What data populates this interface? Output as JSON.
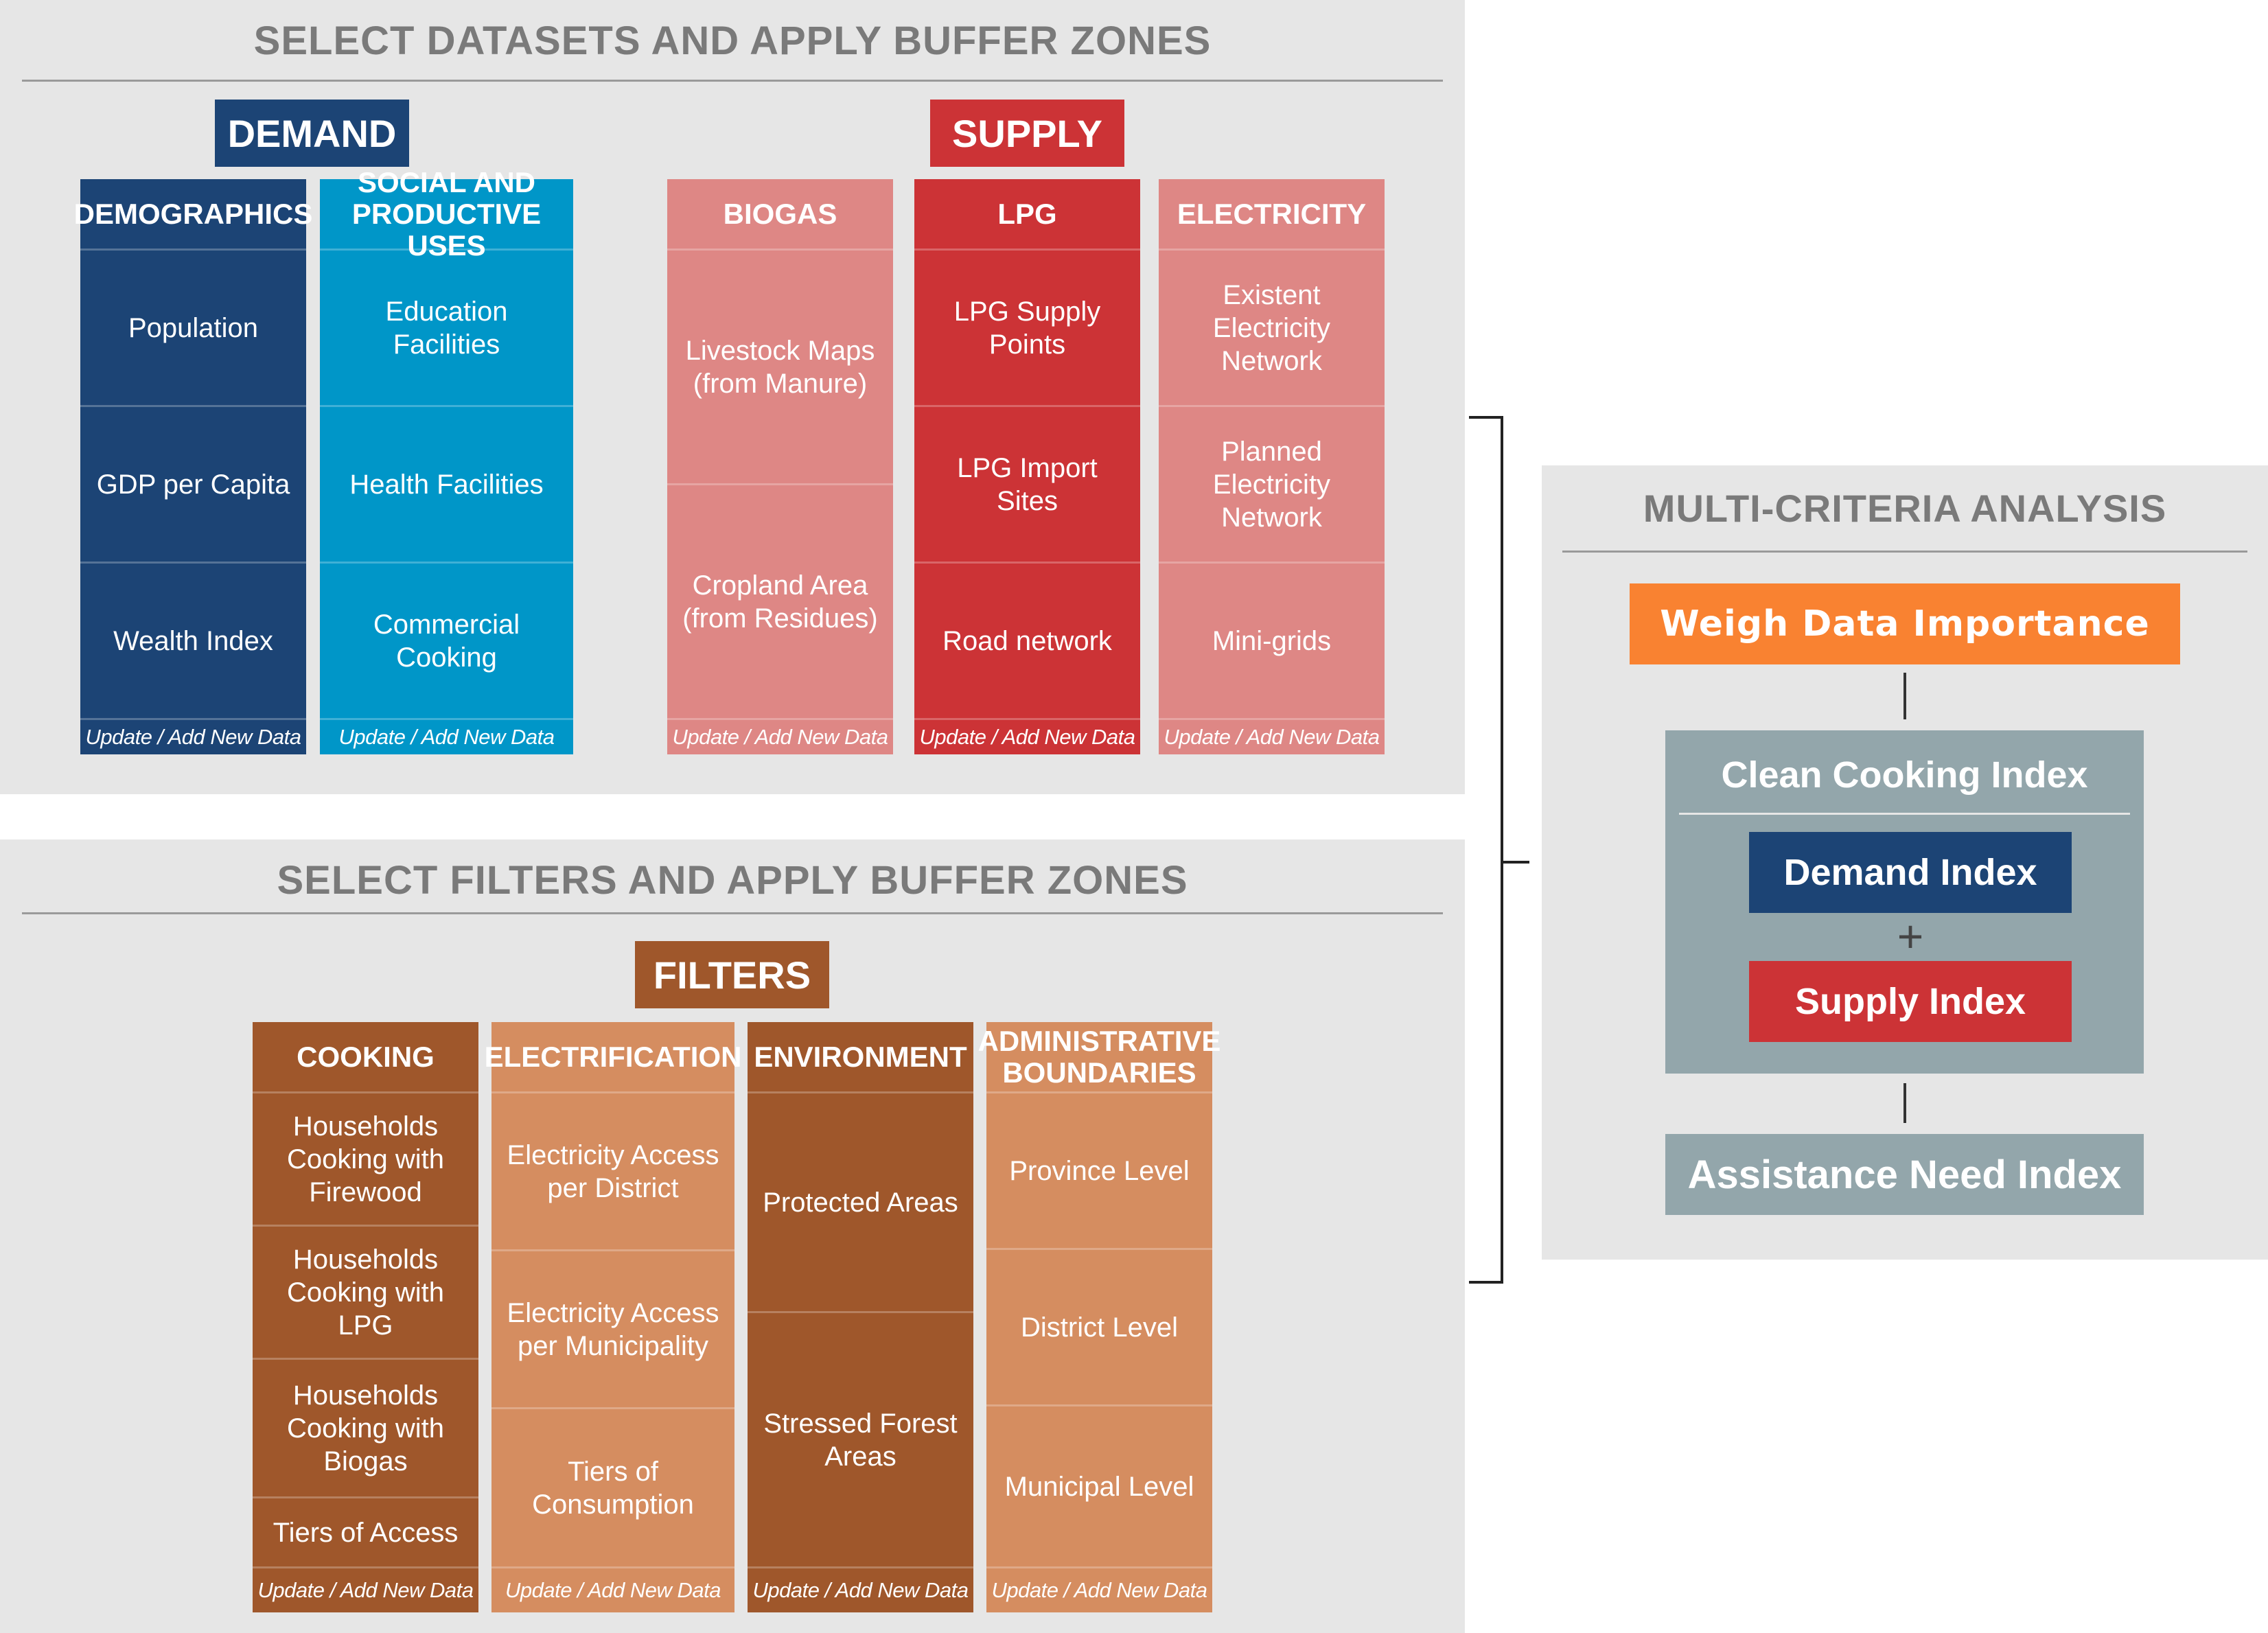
{
  "datasets": {
    "title": "SELECT DATASETS AND APPLY BUFFER ZONES",
    "demand_label": "DEMAND",
    "supply_label": "SUPPLY",
    "columns": [
      {
        "header": "DEMOGRAPHICS",
        "items": [
          "Population",
          "GDP per Capita",
          "Wealth Index"
        ],
        "footer": "Update / Add New Data"
      },
      {
        "header": "SOCIAL AND\nPRODUCTIVE USES",
        "items": [
          "Education\nFacilities",
          "Health Facilities",
          "Commercial\nCooking"
        ],
        "footer": "Update / Add New Data"
      },
      {
        "header": "BIOGAS",
        "items": [
          "Livestock Maps\n(from Manure)",
          "Cropland Area\n(from Residues)"
        ],
        "footer": "Update / Add New Data"
      },
      {
        "header": "LPG",
        "items": [
          "LPG Supply\nPoints",
          "LPG Import\nSites",
          "Road network"
        ],
        "footer": "Update / Add New Data"
      },
      {
        "header": "ELECTRICITY",
        "items": [
          "Existent\nElectricity\nNetwork",
          "Planned\nElectricity\nNetwork",
          "Mini-grids"
        ],
        "footer": "Update / Add New Data"
      }
    ]
  },
  "filters": {
    "title": "SELECT FILTERS AND APPLY BUFFER ZONES",
    "filters_label": "FILTERS",
    "columns": [
      {
        "header": "COOKING",
        "items": [
          "Households\nCooking with\nFirewood",
          "Households\nCooking with\nLPG",
          "Households\nCooking with\nBiogas",
          "Tiers of Access"
        ],
        "footer": "Update / Add New Data"
      },
      {
        "header": "ELECTRIFICATION",
        "items": [
          "Electricity Access\nper District",
          "Electricity Access\nper Municipality",
          "Tiers of\nConsumption"
        ],
        "footer": "Update / Add New Data"
      },
      {
        "header": "ENVIRONMENT",
        "items": [
          "Protected Areas",
          "Stressed Forest\nAreas"
        ],
        "footer": "Update / Add New Data"
      },
      {
        "header": "ADMINISTRATIVE\nBOUNDARIES",
        "items": [
          "Province Level",
          "District Level",
          "Municipal Level"
        ],
        "footer": "Update / Add New Data"
      }
    ]
  },
  "mca": {
    "title": "MULTI-CRITERIA ANALYSIS",
    "weigh_label": "Weigh Data Importance",
    "clean_cooking_label": "Clean Cooking Index",
    "demand_index_label": "Demand Index",
    "plus": "+",
    "supply_index_label": "Supply Index",
    "assistance_label": "Assistance Need Index"
  },
  "colors": {
    "demand": "#1c4475",
    "social": "#0096c8",
    "supply": "#cc3336",
    "supply_light": "#de8785",
    "filters": "#9f572b",
    "filters_light": "#d58d60",
    "weigh": "#f98231",
    "mca_gray": "#93a6ab"
  }
}
